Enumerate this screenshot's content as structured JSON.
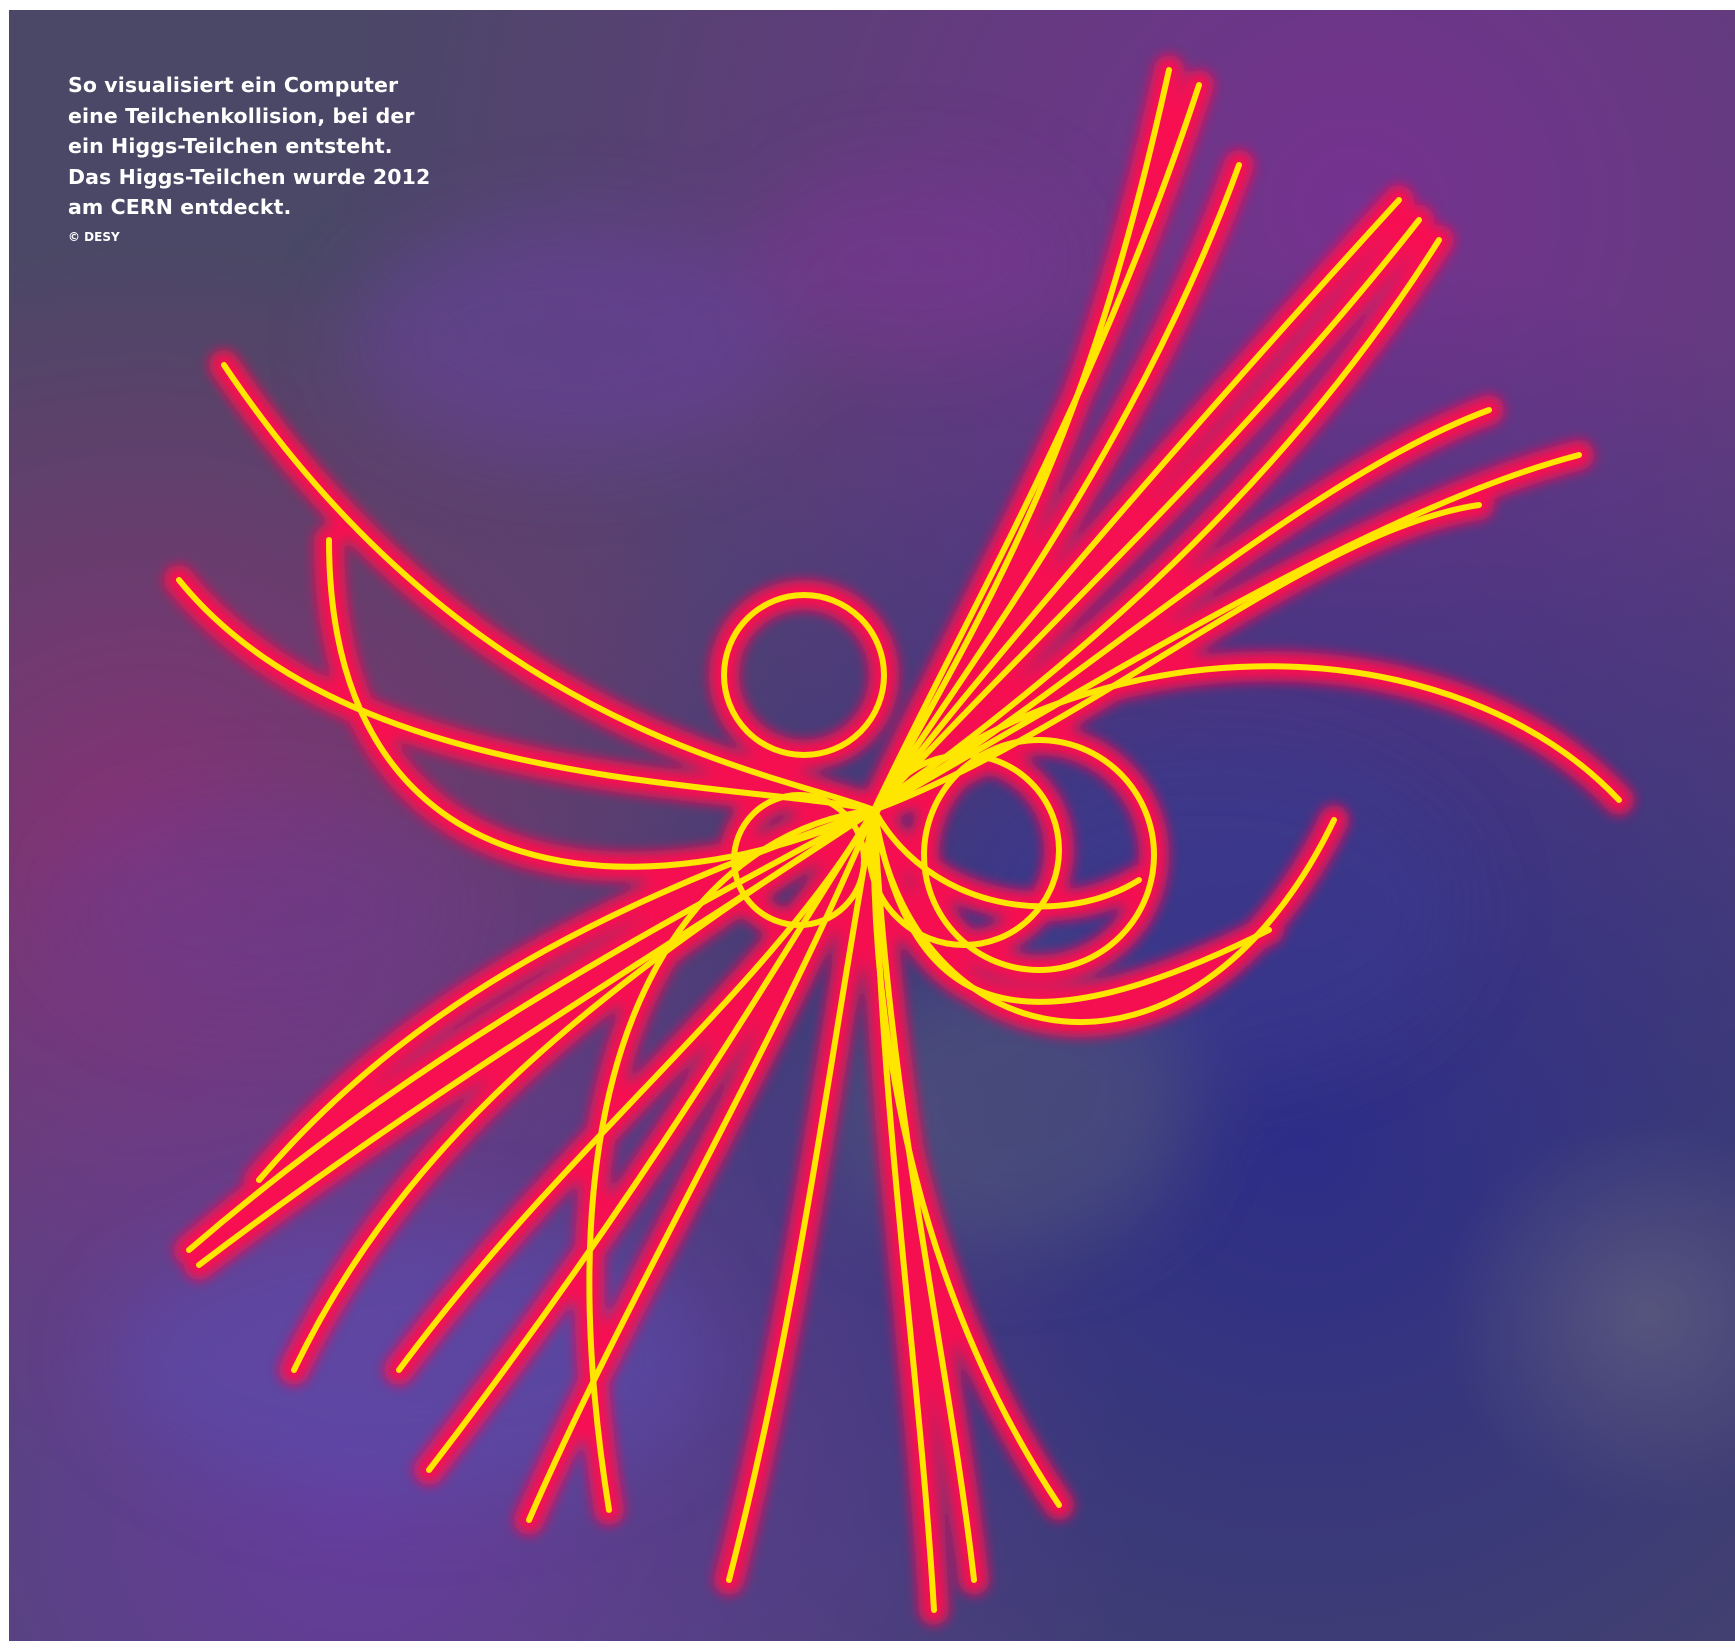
{
  "caption": {
    "lines": [
      "So visualisiert ein Computer",
      "eine Teilchenkollision, bei der",
      "ein Higgs-Teilchen entsteht.",
      "Das Higgs-Teilchen wurde 2012",
      "am CERN entdeckt."
    ],
    "credit": "© DESY"
  },
  "colors": {
    "background_gray": "#4a4866",
    "background_purple": "#6e2d8c",
    "background_blue": "#2f2f86",
    "background_magenta": "#8a2f78",
    "track_glow": "#ff1050",
    "track_core": "#ffe600",
    "caption_text": "#ffffff"
  }
}
